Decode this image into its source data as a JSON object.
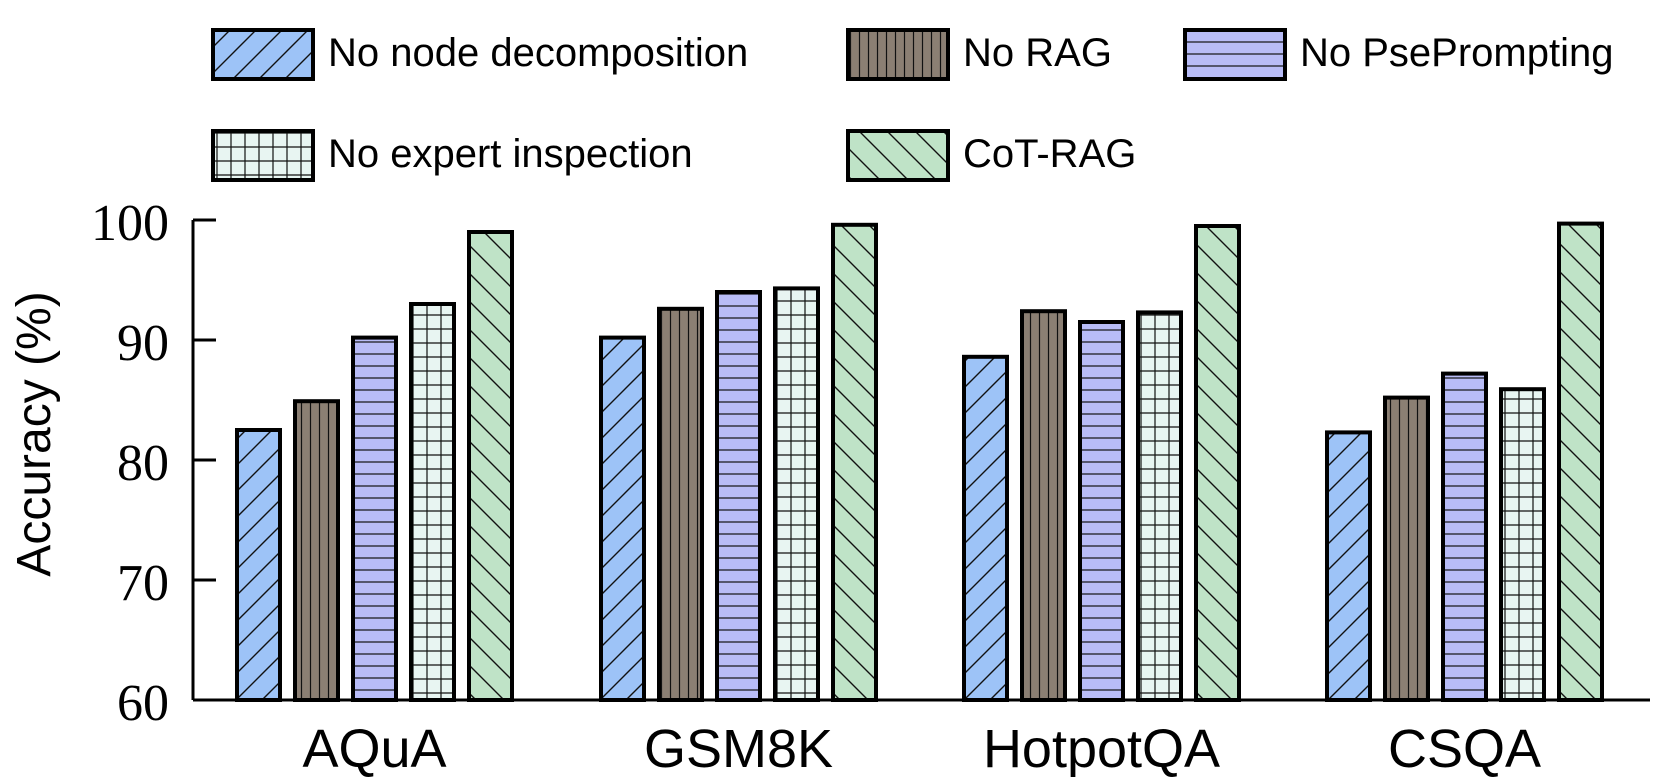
{
  "chart_data": {
    "type": "bar",
    "ylabel": "Accuracy (%)",
    "xlabel": "",
    "ylim": [
      60,
      100
    ],
    "yticks": [
      "60",
      "70",
      "80",
      "90",
      "100"
    ],
    "categories": [
      "AQuA",
      "GSM8K",
      "HotpotQA",
      "CSQA"
    ],
    "legend_position": "top",
    "grid": false,
    "series": [
      {
        "name": "No node decomposition",
        "color": "#9DC3F7",
        "pattern": "diagonal-forward",
        "values": [
          82.5,
          90.2,
          88.6,
          82.3
        ]
      },
      {
        "name": "No RAG",
        "color": "#8B7F73",
        "pattern": "vertical",
        "values": [
          84.9,
          92.6,
          92.4,
          85.2
        ]
      },
      {
        "name": "No PsePrompting",
        "color": "#B8BCF7",
        "pattern": "horizontal",
        "values": [
          90.2,
          94.0,
          91.5,
          87.2
        ]
      },
      {
        "name": "No expert inspection",
        "color": "#E8F5F2",
        "pattern": "grid",
        "values": [
          93.0,
          94.3,
          92.3,
          85.9
        ]
      },
      {
        "name": "CoT-RAG",
        "color": "#BFE3C7",
        "pattern": "diagonal-back",
        "values": [
          99.0,
          99.6,
          99.5,
          99.7
        ]
      }
    ]
  }
}
